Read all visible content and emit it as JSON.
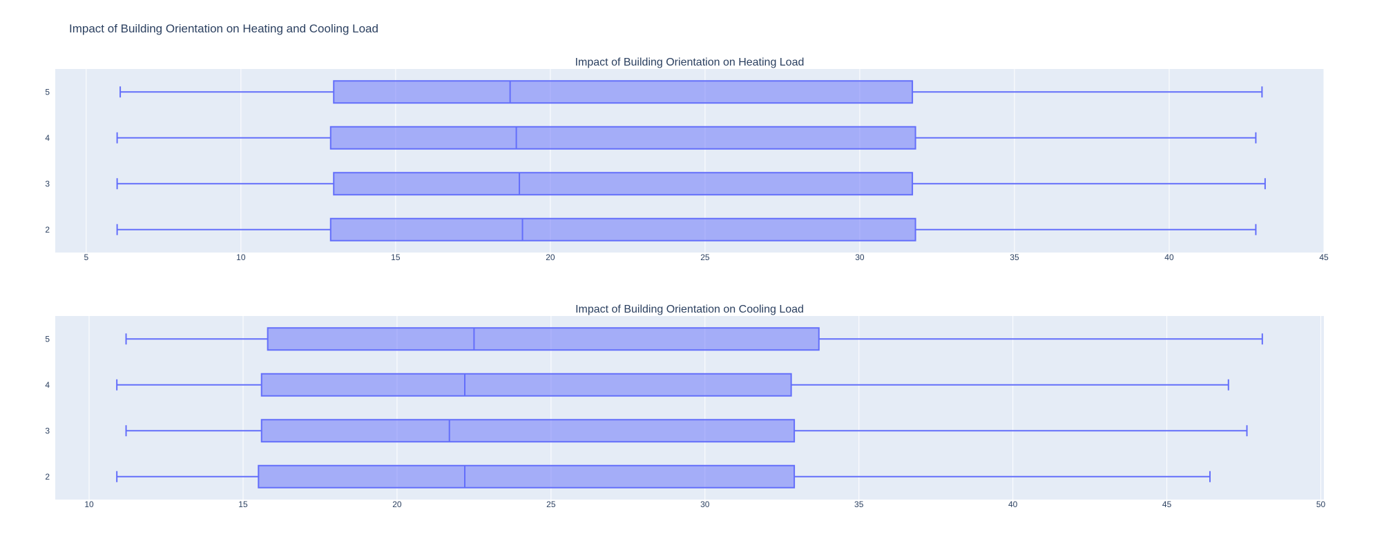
{
  "title": "Impact of Building Orientation on Heating and Cooling Load",
  "colors": {
    "box_line": "#636efa",
    "box_fill": "rgba(99,110,250,0.5)",
    "plot_bg": "#e5ecf6",
    "text": "#2a3f5f"
  },
  "chart_data": [
    {
      "type": "box",
      "orientation": "horizontal",
      "title": "Impact of Building Orientation on Heating Load",
      "xlim": [
        4,
        45
      ],
      "xticks": [
        5,
        10,
        15,
        20,
        25,
        30,
        35,
        40,
        45
      ],
      "categories": [
        "2",
        "3",
        "4",
        "5"
      ],
      "boxes": [
        {
          "category": "2",
          "min": 6.0,
          "q1": 12.9,
          "median": 19.1,
          "q3": 31.8,
          "max": 42.8
        },
        {
          "category": "3",
          "min": 6.0,
          "q1": 13.0,
          "median": 19.0,
          "q3": 31.7,
          "max": 43.1
        },
        {
          "category": "4",
          "min": 6.0,
          "q1": 12.9,
          "median": 18.9,
          "q3": 31.8,
          "max": 42.8
        },
        {
          "category": "5",
          "min": 6.1,
          "q1": 13.0,
          "median": 18.7,
          "q3": 31.7,
          "max": 43.0
        }
      ]
    },
    {
      "type": "box",
      "orientation": "horizontal",
      "title": "Impact of Building Orientation on Cooling Load",
      "xlim": [
        8.9,
        50.1
      ],
      "xticks": [
        10,
        15,
        20,
        25,
        30,
        35,
        40,
        45,
        50
      ],
      "categories": [
        "2",
        "3",
        "4",
        "5"
      ],
      "boxes": [
        {
          "category": "2",
          "min": 10.9,
          "q1": 15.5,
          "median": 22.2,
          "q3": 32.9,
          "max": 46.4
        },
        {
          "category": "3",
          "min": 11.2,
          "q1": 15.6,
          "median": 21.7,
          "q3": 32.9,
          "max": 47.6
        },
        {
          "category": "4",
          "min": 10.9,
          "q1": 15.6,
          "median": 22.2,
          "q3": 32.8,
          "max": 47.0
        },
        {
          "category": "5",
          "min": 11.2,
          "q1": 15.8,
          "median": 22.5,
          "q3": 33.7,
          "max": 48.1
        }
      ]
    }
  ]
}
